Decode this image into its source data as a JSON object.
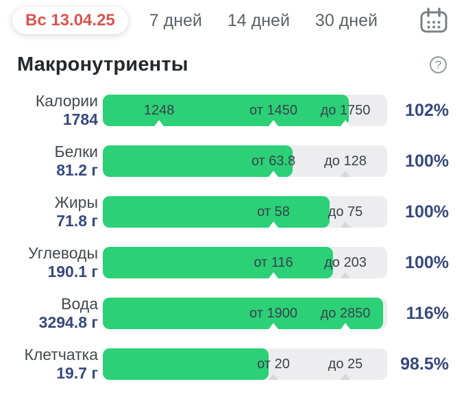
{
  "topbar": {
    "date_label": "Вс 13.04.25",
    "tabs": [
      {
        "label": "7 дней"
      },
      {
        "label": "14 дней"
      },
      {
        "label": "30 дней"
      }
    ]
  },
  "section": {
    "title": "Макронутриенты",
    "help_glyph": "?"
  },
  "colors": {
    "fill_green": "#2bd077",
    "track_gray": "#ededef",
    "value_navy": "#36497c",
    "date_red": "#da544d"
  },
  "rows": [
    {
      "name": "Калории",
      "value": "1784",
      "percent": "102%",
      "fill_pct": 86.5,
      "markers": [
        {
          "label": "1248",
          "pos_pct": 19.8,
          "on_green": true
        },
        {
          "label": "от 1450",
          "pos_pct": 60.0,
          "on_green": true
        },
        {
          "label": "до 1750",
          "pos_pct": 85.3,
          "on_green": true
        }
      ]
    },
    {
      "name": "Белки",
      "value": "81.2 г",
      "percent": "100%",
      "fill_pct": 66.7,
      "markers": [
        {
          "label": "от 63.8",
          "pos_pct": 60.0,
          "on_green": true
        },
        {
          "label": "до 128",
          "pos_pct": 85.3,
          "on_green": false
        }
      ]
    },
    {
      "name": "Жиры",
      "value": "71.8 г",
      "percent": "100%",
      "fill_pct": 79.8,
      "markers": [
        {
          "label": "от 58",
          "pos_pct": 60.0,
          "on_green": true
        },
        {
          "label": "до 75",
          "pos_pct": 85.3,
          "on_green": false
        }
      ]
    },
    {
      "name": "Углеводы",
      "value": "190.1 г",
      "percent": "100%",
      "fill_pct": 81.0,
      "markers": [
        {
          "label": "от 116",
          "pos_pct": 60.0,
          "on_green": true
        },
        {
          "label": "до 203",
          "pos_pct": 85.3,
          "on_green": false
        }
      ]
    },
    {
      "name": "Вода",
      "value": "3294.8 г",
      "percent": "116%",
      "fill_pct": 98.5,
      "markers": [
        {
          "label": "от 1900",
          "pos_pct": 60.0,
          "on_green": true
        },
        {
          "label": "до 2850",
          "pos_pct": 85.3,
          "on_green": true
        }
      ]
    },
    {
      "name": "Клетчатка",
      "value": "19.7 г",
      "percent": "98.5%",
      "fill_pct": 58.3,
      "markers": [
        {
          "label": "от 20",
          "pos_pct": 60.0,
          "on_green": false
        },
        {
          "label": "до 25",
          "pos_pct": 85.3,
          "on_green": false
        }
      ]
    }
  ]
}
